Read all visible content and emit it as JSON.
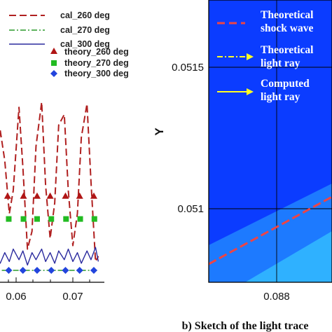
{
  "chart_data": [
    {
      "type": "line",
      "xlim": [
        0.0555,
        0.0745
      ],
      "ylim": [
        0,
        1
      ],
      "x_ticks": [
        0.06,
        0.07
      ],
      "x_tick_labels": [
        "0.06",
        "0.07"
      ],
      "legend_position": "top",
      "colors": {
        "cal_260": "#b02020",
        "cal_270": "#2a9a2a",
        "cal_300": "#2a2a9e",
        "th260": "#b01515",
        "th270": "#22bb22",
        "th300": "#2244dd"
      },
      "series": [
        {
          "name": "cal_260 deg",
          "style": "dashed",
          "x": [
            0.0555,
            0.0565,
            0.0572,
            0.058,
            0.0588,
            0.0595,
            0.0605,
            0.0612,
            0.062,
            0.0628,
            0.0635,
            0.0645,
            0.0652,
            0.066,
            0.0668,
            0.0675,
            0.0685,
            0.0692,
            0.07,
            0.0708,
            0.0715,
            0.0725,
            0.0732,
            0.074,
            0.0745
          ],
          "y": [
            0.2,
            0.6,
            0.79,
            0.62,
            0.32,
            0.45,
            0.92,
            0.58,
            0.12,
            0.22,
            0.7,
            0.95,
            0.48,
            0.18,
            0.38,
            0.82,
            0.88,
            0.45,
            0.14,
            0.32,
            0.75,
            0.94,
            0.5,
            0.05,
            0.08
          ]
        },
        {
          "name": "cal_270 deg",
          "style": "dash-dot",
          "x": [
            0.0555,
            0.0745
          ],
          "y": [
            0.0,
            0.0
          ]
        },
        {
          "name": "cal_300 deg",
          "style": "solid",
          "x": [
            0.0555,
            0.0565,
            0.0572,
            0.058,
            0.0588,
            0.0595,
            0.0605,
            0.0612,
            0.062,
            0.0628,
            0.0635,
            0.0645,
            0.0652,
            0.066,
            0.0668,
            0.0675,
            0.0685,
            0.0692,
            0.07,
            0.0708,
            0.0715,
            0.0725,
            0.0732,
            0.074,
            0.0745
          ],
          "y": [
            0.06,
            0.09,
            0.04,
            0.1,
            0.05,
            0.12,
            0.06,
            0.11,
            0.03,
            0.1,
            0.06,
            0.12,
            0.05,
            0.1,
            0.04,
            0.11,
            0.06,
            0.12,
            0.05,
            0.1,
            0.04,
            0.11,
            0.06,
            0.13,
            0.05
          ]
        },
        {
          "name": "theory_260 deg",
          "style": "triangle",
          "x": [
            0.0585,
            0.0613,
            0.0637,
            0.066,
            0.0687,
            0.0712,
            0.0737
          ],
          "y": [
            0.42,
            0.42,
            0.42,
            0.42,
            0.42,
            0.42,
            0.42
          ]
        },
        {
          "name": "theory_270 deg",
          "style": "square",
          "x": [
            0.0587,
            0.0613,
            0.0637,
            0.0662,
            0.0688,
            0.0713,
            0.0738
          ],
          "y": [
            0.29,
            0.29,
            0.29,
            0.29,
            0.29,
            0.29,
            0.29
          ]
        },
        {
          "name": "theory_300 deg",
          "style": "diamond",
          "x": [
            0.0562,
            0.0587,
            0.0612,
            0.0637,
            0.0662,
            0.0687,
            0.0712,
            0.0737
          ],
          "y": [
            0.0,
            0.0,
            0.0,
            0.0,
            0.0,
            0.0,
            0.0,
            0.0
          ]
        }
      ]
    },
    {
      "type": "heatmap",
      "caption": "b) Sketch of the light trace",
      "ylabel": "Y",
      "x_ticks": [
        0.088
      ],
      "x_tick_labels": [
        "0.088"
      ],
      "y_ticks": [
        0.051,
        0.0515
      ],
      "y_tick_labels": [
        "0.051",
        "0.0515"
      ],
      "colors": {
        "background": "#0b3cff",
        "band": "#1d7aff",
        "band_light": "#2fb1ff",
        "shock": "#ee4444",
        "ray": "#ffff22",
        "legend_text": "#ffffff"
      },
      "legend": [
        {
          "style": "dashed",
          "label_lines": [
            "Theoretical",
            "shock wave"
          ]
        },
        {
          "style": "dash-dot-arrow",
          "label_lines": [
            "Theoretical",
            "light ray"
          ]
        },
        {
          "style": "solid-arrow",
          "label_lines": [
            "Computed",
            "light ray"
          ]
        }
      ]
    }
  ]
}
